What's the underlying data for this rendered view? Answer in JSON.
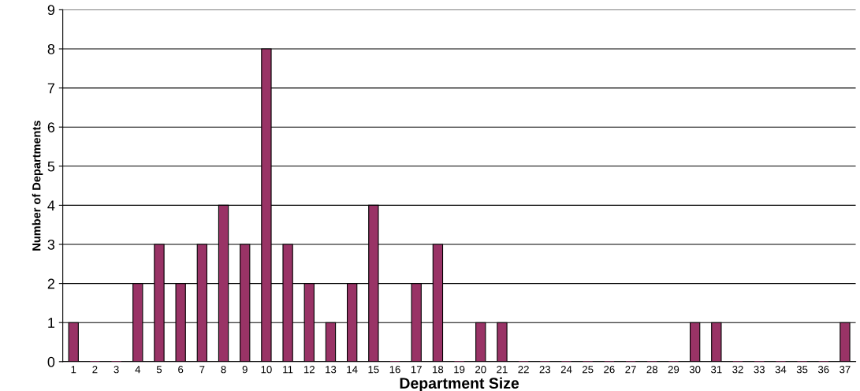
{
  "chart_data": {
    "type": "bar",
    "xlabel": "Department Size",
    "ylabel": "Number of Departments",
    "categories": [
      "1",
      "2",
      "3",
      "4",
      "5",
      "6",
      "7",
      "8",
      "9",
      "10",
      "11",
      "12",
      "13",
      "14",
      "15",
      "16",
      "17",
      "18",
      "19",
      "20",
      "21",
      "22",
      "23",
      "24",
      "25",
      "26",
      "27",
      "28",
      "29",
      "30",
      "31",
      "32",
      "33",
      "34",
      "35",
      "36",
      "37"
    ],
    "values": [
      1,
      0,
      0,
      2,
      3,
      2,
      3,
      4,
      3,
      8,
      3,
      2,
      1,
      2,
      4,
      0,
      2,
      3,
      0,
      1,
      1,
      0,
      0,
      0,
      0,
      0,
      0,
      0,
      0,
      1,
      1,
      0,
      0,
      0,
      0,
      0,
      1
    ],
    "color": "#993366",
    "ylim": [
      0,
      9
    ],
    "yticks": [
      0,
      1,
      2,
      3,
      4,
      5,
      6,
      7,
      8,
      9
    ],
    "grid": "y",
    "legend": false
  }
}
